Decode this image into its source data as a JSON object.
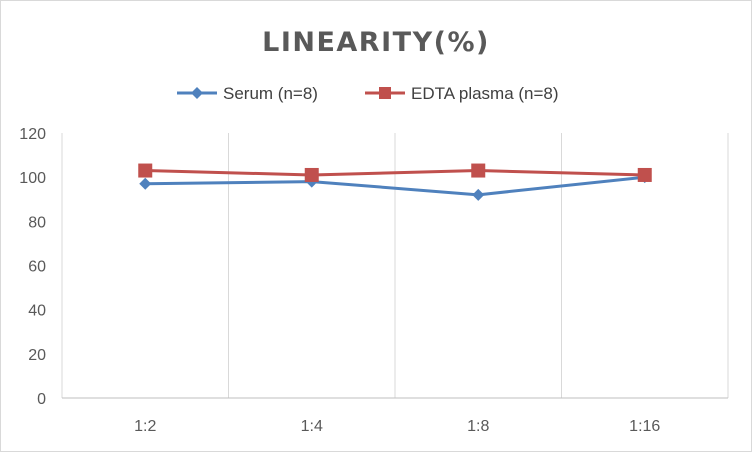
{
  "chart_data": {
    "type": "line",
    "title": "LINEARITY(%)",
    "xlabel": "",
    "ylabel": "",
    "categories": [
      "1:2",
      "1:4",
      "1:8",
      "1:16"
    ],
    "ylim": [
      0,
      120
    ],
    "yticks": [
      0,
      20,
      40,
      60,
      80,
      100,
      120
    ],
    "grid": "vertical",
    "legend": "top-center",
    "series": [
      {
        "name": "Serum (n=8)",
        "values": [
          97,
          98,
          92,
          100
        ],
        "color": "#4f81bd",
        "marker": "diamond"
      },
      {
        "name": "EDTA plasma (n=8)",
        "values": [
          103,
          101,
          103,
          101
        ],
        "color": "#c0504d",
        "marker": "square"
      }
    ]
  }
}
